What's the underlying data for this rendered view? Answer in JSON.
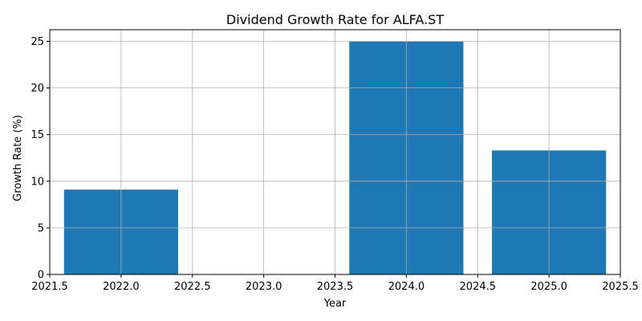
{
  "chart_data": {
    "type": "bar",
    "title": "Dividend Growth Rate for ALFA.ST",
    "xlabel": "Year",
    "ylabel": "Growth Rate (%)",
    "x": [
      2022,
      2023,
      2024,
      2025
    ],
    "values": [
      9.1,
      0,
      25.0,
      13.3
    ],
    "bar_width": 0.8,
    "xlim": [
      2021.5,
      2025.5
    ],
    "ylim": [
      0,
      26.25
    ],
    "x_ticks": [
      2021.5,
      2022.0,
      2022.5,
      2023.0,
      2023.5,
      2024.0,
      2024.5,
      2025.0,
      2025.5
    ],
    "x_tick_labels": [
      "2021.5",
      "2022.0",
      "2022.5",
      "2023.0",
      "2023.5",
      "2024.0",
      "2024.5",
      "2025.0",
      "2025.5"
    ],
    "y_ticks": [
      0,
      5,
      10,
      15,
      20,
      25
    ],
    "y_tick_labels": [
      "0",
      "5",
      "10",
      "15",
      "20",
      "25"
    ],
    "grid": true,
    "bar_color": "#1f77b4",
    "grid_color": "#b0b0b0"
  }
}
